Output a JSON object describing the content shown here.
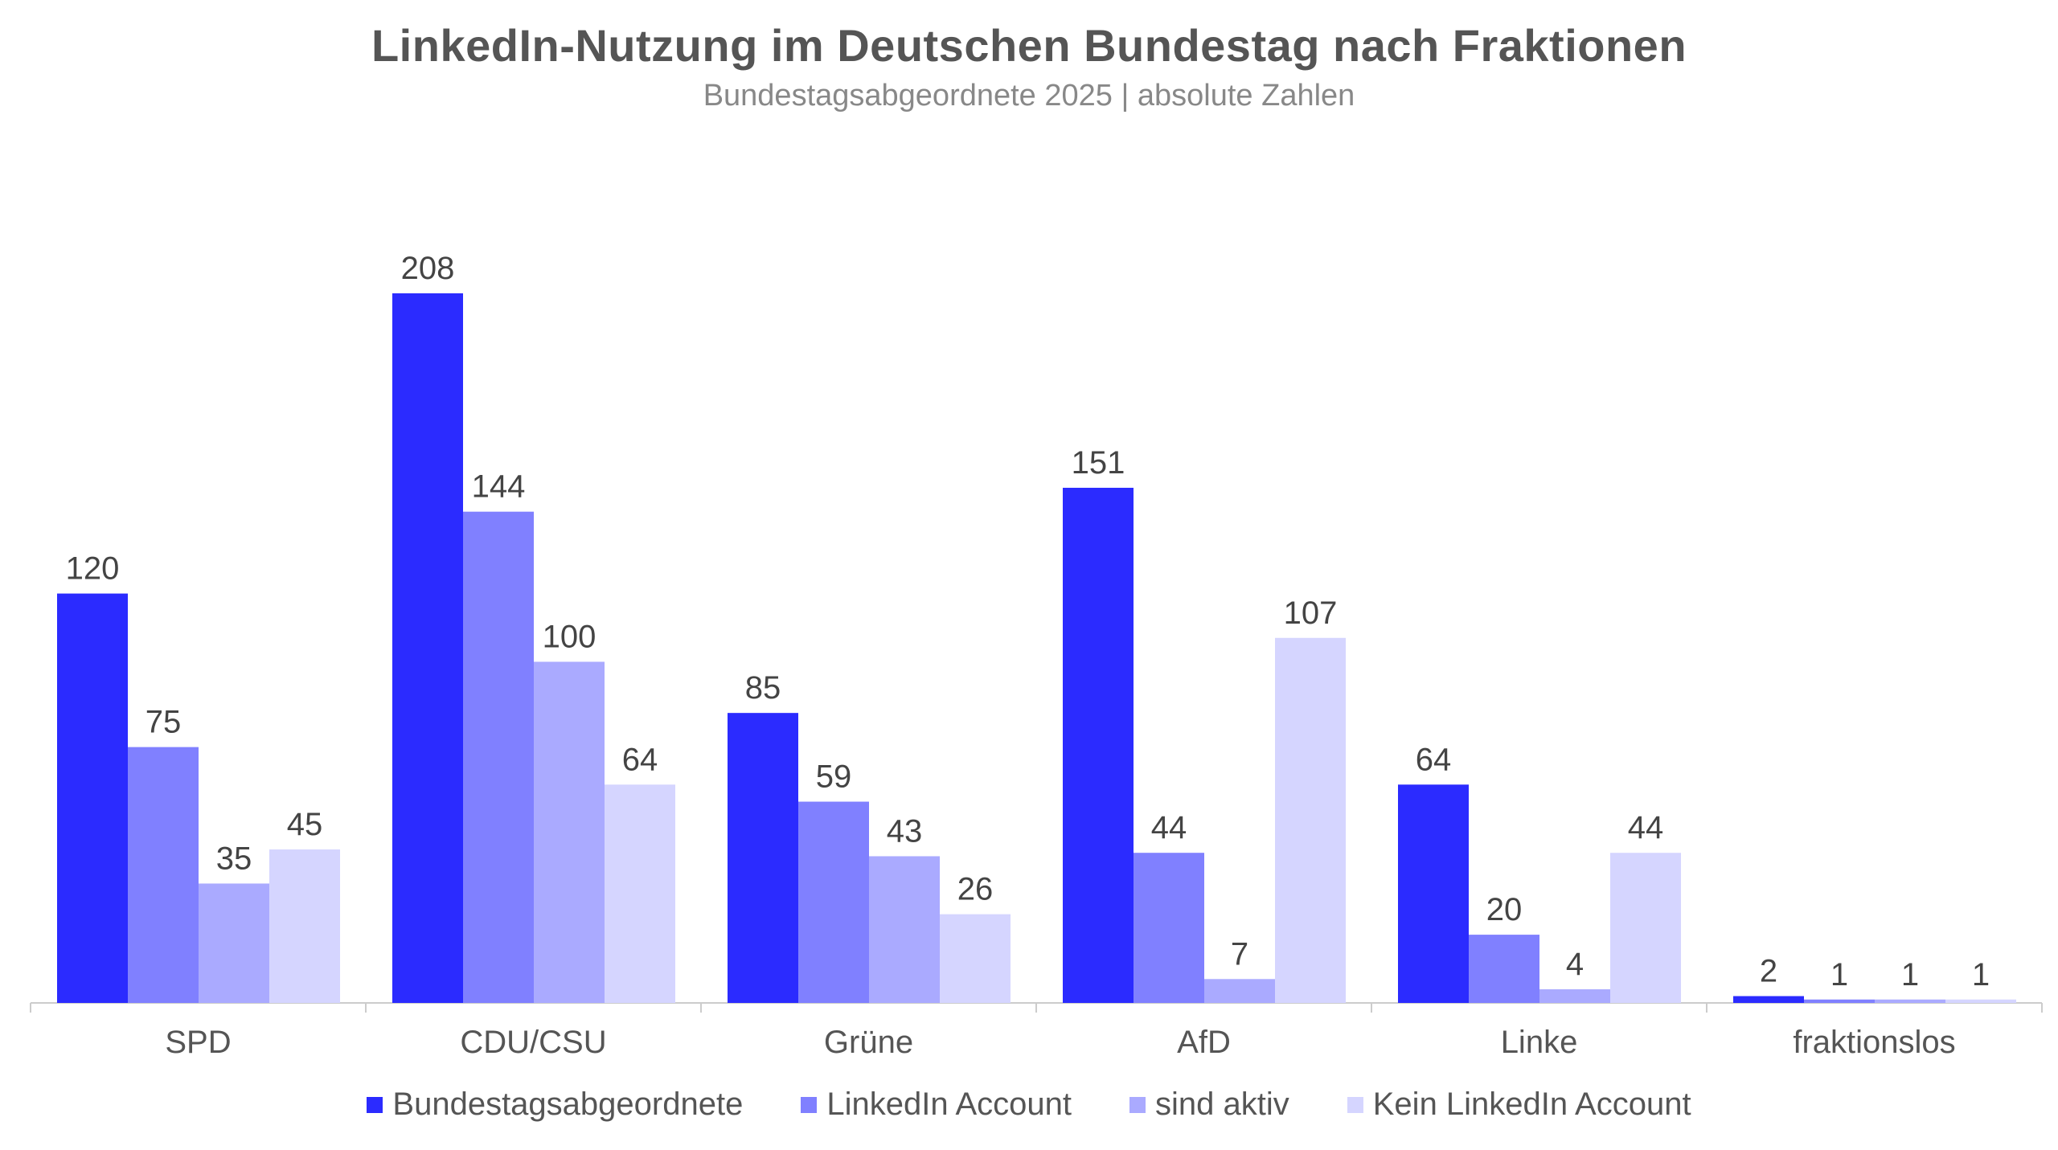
{
  "title": "LinkedIn-Nutzung im Deutschen Bundestag nach Fraktionen",
  "subtitle": "Bundestagsabgeordnete 2025 | absolute Zahlen",
  "chart_data": {
    "type": "bar",
    "title": "LinkedIn-Nutzung im Deutschen Bundestag nach Fraktionen",
    "subtitle": "Bundestagsabgeordnete 2025 | absolute Zahlen",
    "categories": [
      "SPD",
      "CDU/CSU",
      "Grüne",
      "AfD",
      "Linke",
      "fraktionslos"
    ],
    "series": [
      {
        "name": "Bundestagsabgeordnete",
        "color": "#2b2bff",
        "values": [
          120,
          208,
          85,
          151,
          64,
          2
        ]
      },
      {
        "name": "LinkedIn Account",
        "color": "#8080ff",
        "values": [
          75,
          144,
          59,
          44,
          20,
          1
        ]
      },
      {
        "name": "sind aktiv",
        "color": "#aaaaff",
        "values": [
          35,
          100,
          43,
          7,
          4,
          1
        ]
      },
      {
        "name": "Kein LinkedIn Account",
        "color": "#d5d5ff",
        "values": [
          45,
          64,
          26,
          107,
          44,
          1
        ]
      }
    ],
    "ylim": [
      0,
      208
    ],
    "grid": false,
    "legend_position": "bottom",
    "data_labels": true
  }
}
